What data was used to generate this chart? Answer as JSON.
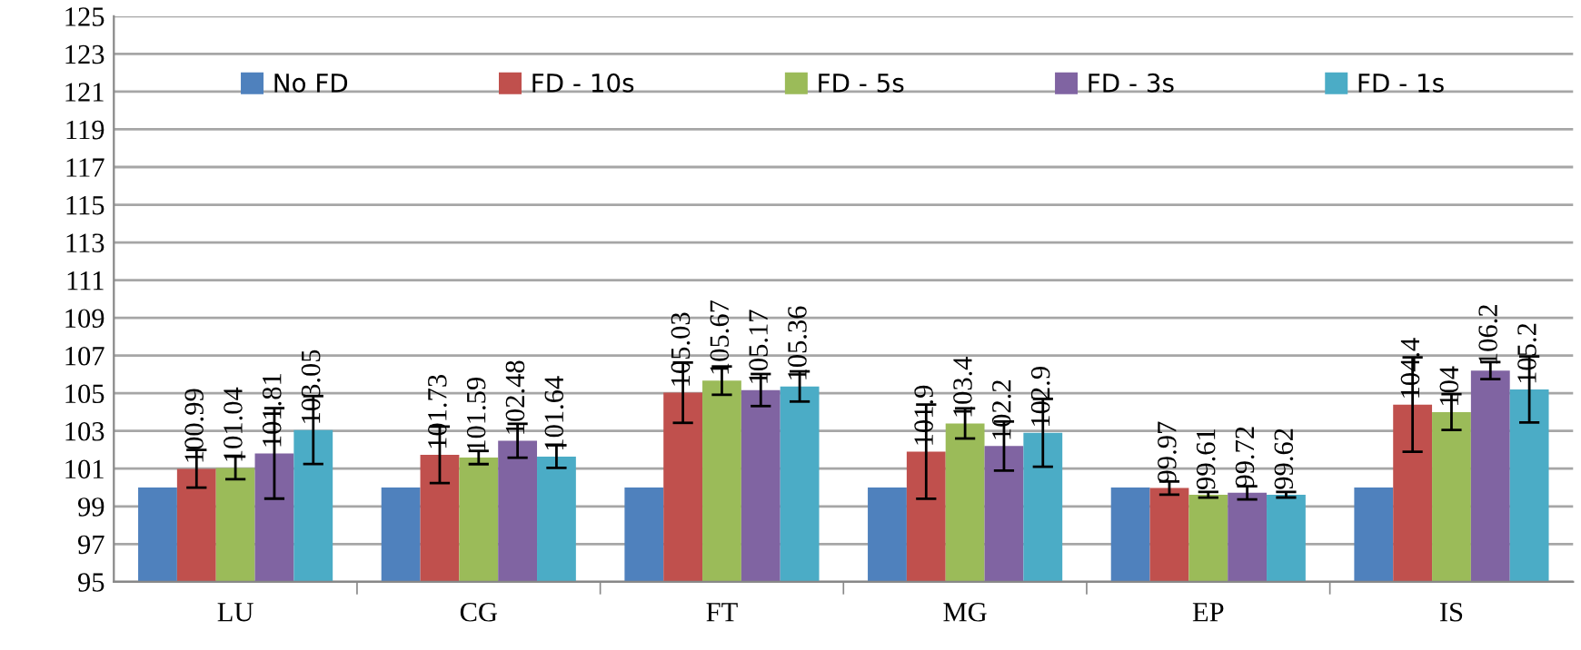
{
  "chart_data": {
    "type": "bar",
    "categories": [
      "LU",
      "CG",
      "FT",
      "MG",
      "EP",
      "IS"
    ],
    "series": [
      {
        "name": "No FD",
        "color": "#4f81bd",
        "values": [
          100,
          100,
          100,
          100,
          100,
          100
        ]
      },
      {
        "name": "FD - 10s",
        "color": "#c0504d",
        "values": [
          100.99,
          101.73,
          105.03,
          101.9,
          99.97,
          104.4
        ],
        "errors": [
          1.0,
          1.5,
          1.6,
          2.5,
          0.35,
          2.5
        ],
        "value_labels": [
          "100.99",
          "101.73",
          "105.03",
          "101.9",
          "99.97",
          "104.4"
        ]
      },
      {
        "name": "FD - 5s",
        "color": "#9bbb59",
        "values": [
          101.04,
          101.59,
          105.67,
          103.4,
          99.61,
          104
        ],
        "errors": [
          0.6,
          0.35,
          0.75,
          0.8,
          0.15,
          0.95
        ],
        "value_labels": [
          "101.04",
          "101.59",
          "105.67",
          "103.4",
          "99.61",
          "104"
        ]
      },
      {
        "name": "FD - 3s",
        "color": "#8064a2",
        "values": [
          101.81,
          102.48,
          105.17,
          102.2,
          99.72,
          106.2
        ],
        "errors": [
          2.4,
          0.9,
          0.85,
          1.3,
          0.35,
          0.45
        ],
        "value_labels": [
          "101.81",
          "102.48",
          "105.17",
          "102.2",
          "99.72",
          "106.2"
        ]
      },
      {
        "name": "FD - 1s",
        "color": "#4bacc6",
        "values": [
          103.05,
          101.64,
          105.36,
          102.9,
          99.62,
          105.2
        ],
        "errors": [
          1.8,
          0.6,
          0.8,
          1.8,
          0.15,
          1.75
        ],
        "value_labels": [
          "103.05",
          "101.64",
          "105.36",
          "102.9",
          "99.62",
          "105.2"
        ]
      }
    ],
    "ylim": [
      95,
      125
    ],
    "yticks": [
      95,
      97,
      99,
      101,
      103,
      105,
      107,
      109,
      111,
      113,
      115,
      117,
      119,
      121,
      123,
      125
    ],
    "grid": "y",
    "legend": "top"
  }
}
